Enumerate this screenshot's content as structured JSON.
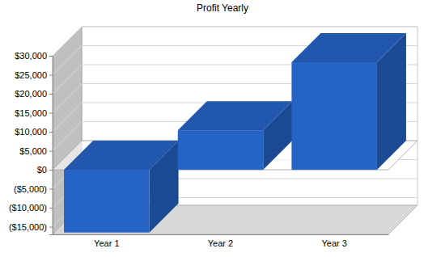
{
  "chart_data": {
    "type": "bar",
    "title": "Profit Yearly",
    "categories": [
      "Year 1",
      "Year 2",
      "Year 3"
    ],
    "values": [
      -16500,
      10400,
      28300
    ],
    "color": "#2563c4",
    "ylim": [
      -17000,
      30000
    ],
    "yticks": [
      {
        "value": -15000,
        "label": "($15,000)"
      },
      {
        "value": -10000,
        "label": "($10,000)"
      },
      {
        "value": -5000,
        "label": "($5,000)"
      },
      {
        "value": 0,
        "label": "$0"
      },
      {
        "value": 5000,
        "label": "$5,000"
      },
      {
        "value": 10000,
        "label": "$10,000"
      },
      {
        "value": 15000,
        "label": "$15,000"
      },
      {
        "value": 20000,
        "label": "$20,000"
      },
      {
        "value": 25000,
        "label": "$25,000"
      },
      {
        "value": 30000,
        "label": "$30,000"
      }
    ],
    "grid": true
  }
}
